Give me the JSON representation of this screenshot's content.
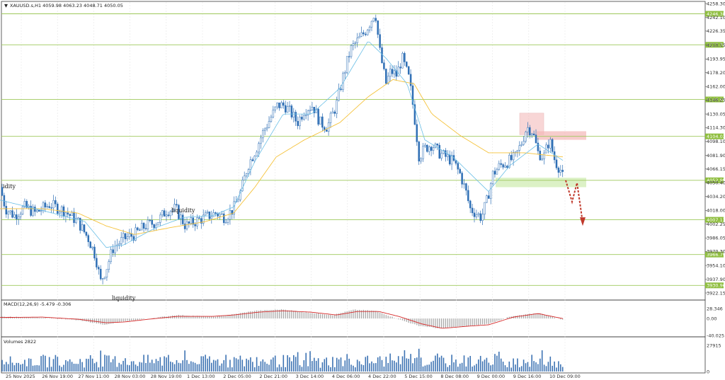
{
  "header": {
    "menu_icon": "triangle-down-icon",
    "text": "XAUUSD.s,H1  4059.98 4063.23 4048.71 4050.05"
  },
  "colors": {
    "bull": "#2f6fb5",
    "bear": "#2f6fb5",
    "ma_fast": "#6bbfe6",
    "ma_slow": "#f5c23a",
    "level": "#9ec85b",
    "level_label_bg": "#8fbe3f",
    "macd_signal": "#d62a2a",
    "macd_hist": "#a9a9a9",
    "volume": "#3d73b3",
    "zone_red": "#f4b6b6",
    "zone_green": "#d8f0c0",
    "arrow": "#c0392b",
    "frame": "#3a3a3a"
  },
  "chart_data": {
    "type": "candlestick",
    "symbol": "XAUUSD.s",
    "timeframe": "H1",
    "ohlc_last": {
      "open": 4059.98,
      "high": 4063.23,
      "low": 4048.71,
      "close": 4050.05
    },
    "ylim": [
      3922.15,
      4258.3
    ],
    "price_axis_ticks": [
      "4258.30",
      "4242.10",
      "4226.35",
      "4210.15",
      "4193.95",
      "4178.20",
      "4162.00",
      "4146.25",
      "4130.05",
      "4114.30",
      "4098.10",
      "4081.90",
      "4066.15",
      "4050.40",
      "4034.20",
      "4018.00",
      "4002.25",
      "3986.05",
      "3970.30",
      "3954.10",
      "3937.90",
      "3922.15"
    ],
    "horizontal_levels": [
      {
        "label": "4246.38",
        "value": 4246.38
      },
      {
        "label": "4210.38",
        "value": 4210.38
      },
      {
        "label": "4146.90",
        "value": 4146.9
      },
      {
        "label": "4104.03",
        "value": 4104.03
      },
      {
        "label": "4052.99",
        "value": 4052.99
      },
      {
        "label": "4007.13",
        "value": 4007.13
      },
      {
        "label": "3966.79",
        "value": 3966.79
      },
      {
        "label": "3930.96",
        "value": 3930.96
      }
    ],
    "annotations": [
      {
        "text": "idity"
      },
      {
        "text": "liquidity"
      },
      {
        "text": "liquidity"
      }
    ],
    "close_path_keypoints": [
      [
        0,
        4045
      ],
      [
        8,
        4020
      ],
      [
        20,
        4012
      ],
      [
        35,
        4022
      ],
      [
        50,
        4015
      ],
      [
        70,
        4025
      ],
      [
        90,
        4018
      ],
      [
        110,
        4005
      ],
      [
        125,
        3985
      ],
      [
        135,
        3965
      ],
      [
        142,
        3935
      ],
      [
        150,
        3950
      ],
      [
        160,
        3975
      ],
      [
        175,
        3985
      ],
      [
        190,
        3990
      ],
      [
        205,
        4000
      ],
      [
        222,
        4005
      ],
      [
        235,
        4018
      ],
      [
        248,
        4020
      ],
      [
        262,
        4000
      ],
      [
        275,
        4005
      ],
      [
        290,
        4010
      ],
      [
        305,
        4015
      ],
      [
        318,
        4010
      ],
      [
        330,
        4020
      ],
      [
        340,
        4040
      ],
      [
        350,
        4070
      ],
      [
        362,
        4090
      ],
      [
        372,
        4110
      ],
      [
        382,
        4125
      ],
      [
        392,
        4140
      ],
      [
        402,
        4140
      ],
      [
        412,
        4130
      ],
      [
        420,
        4120
      ],
      [
        430,
        4135
      ],
      [
        442,
        4140
      ],
      [
        452,
        4120
      ],
      [
        462,
        4115
      ],
      [
        475,
        4140
      ],
      [
        485,
        4175
      ],
      [
        495,
        4205
      ],
      [
        505,
        4215
      ],
      [
        515,
        4225
      ],
      [
        525,
        4240
      ],
      [
        530,
        4250
      ],
      [
        536,
        4205
      ],
      [
        545,
        4165
      ],
      [
        552,
        4180
      ],
      [
        560,
        4175
      ],
      [
        568,
        4195
      ],
      [
        578,
        4170
      ],
      [
        585,
        4130
      ],
      [
        592,
        4080
      ],
      [
        600,
        4090
      ],
      [
        610,
        4095
      ],
      [
        620,
        4085
      ],
      [
        630,
        4080
      ],
      [
        640,
        4075
      ],
      [
        650,
        4060
      ],
      [
        658,
        4040
      ],
      [
        664,
        4020
      ],
      [
        672,
        4015
      ],
      [
        680,
        4010
      ],
      [
        688,
        4030
      ],
      [
        696,
        4060
      ],
      [
        706,
        4070
      ],
      [
        718,
        4075
      ],
      [
        728,
        4080
      ],
      [
        736,
        4095
      ],
      [
        744,
        4115
      ],
      [
        752,
        4110
      ],
      [
        760,
        4085
      ],
      [
        768,
        4080
      ],
      [
        776,
        4100
      ],
      [
        784,
        4075
      ],
      [
        792,
        4065
      ],
      [
        797,
        4050
      ]
    ],
    "ma_fast_keypoints": [
      [
        0,
        4030
      ],
      [
        60,
        4018
      ],
      [
        120,
        4005
      ],
      [
        150,
        3975
      ],
      [
        175,
        3978
      ],
      [
        220,
        3998
      ],
      [
        260,
        4010
      ],
      [
        300,
        4012
      ],
      [
        330,
        4022
      ],
      [
        360,
        4075
      ],
      [
        400,
        4130
      ],
      [
        440,
        4130
      ],
      [
        480,
        4160
      ],
      [
        520,
        4215
      ],
      [
        545,
        4195
      ],
      [
        575,
        4165
      ],
      [
        600,
        4100
      ],
      [
        640,
        4080
      ],
      [
        690,
        4040
      ],
      [
        720,
        4070
      ],
      [
        760,
        4095
      ],
      [
        797,
        4075
      ]
    ],
    "ma_slow_keypoints": [
      [
        0,
        4020
      ],
      [
        60,
        4020
      ],
      [
        110,
        4015
      ],
      [
        150,
        4000
      ],
      [
        190,
        3990
      ],
      [
        240,
        3998
      ],
      [
        290,
        4005
      ],
      [
        330,
        4015
      ],
      [
        360,
        4045
      ],
      [
        390,
        4080
      ],
      [
        430,
        4100
      ],
      [
        480,
        4120
      ],
      [
        520,
        4150
      ],
      [
        555,
        4170
      ],
      [
        585,
        4165
      ],
      [
        610,
        4130
      ],
      [
        650,
        4105
      ],
      [
        690,
        4085
      ],
      [
        740,
        4085
      ],
      [
        797,
        4080
      ]
    ],
    "macd": {
      "label": "MACD(12,26,9) -5.479 -0.306",
      "axis_ticks": [
        "28.346",
        "0.00",
        "-40.025"
      ],
      "ylim": [
        -40.025,
        28.346
      ],
      "histogram_keypoints": [
        [
          0,
          5
        ],
        [
          60,
          3
        ],
        [
          110,
          -5
        ],
        [
          150,
          -18
        ],
        [
          170,
          -10
        ],
        [
          210,
          0
        ],
        [
          250,
          10
        ],
        [
          300,
          5
        ],
        [
          330,
          12
        ],
        [
          360,
          22
        ],
        [
          400,
          26
        ],
        [
          430,
          18
        ],
        [
          470,
          10
        ],
        [
          500,
          25
        ],
        [
          530,
          22
        ],
        [
          560,
          0
        ],
        [
          590,
          -20
        ],
        [
          620,
          -28
        ],
        [
          660,
          -22
        ],
        [
          690,
          -15
        ],
        [
          720,
          5
        ],
        [
          760,
          16
        ],
        [
          797,
          -5
        ]
      ],
      "signal_keypoints": [
        [
          0,
          3
        ],
        [
          60,
          4
        ],
        [
          110,
          -2
        ],
        [
          150,
          -12
        ],
        [
          175,
          -10
        ],
        [
          210,
          -2
        ],
        [
          250,
          6
        ],
        [
          300,
          6
        ],
        [
          330,
          10
        ],
        [
          365,
          18
        ],
        [
          400,
          22
        ],
        [
          440,
          18
        ],
        [
          475,
          10
        ],
        [
          505,
          20
        ],
        [
          535,
          20
        ],
        [
          565,
          5
        ],
        [
          595,
          -15
        ],
        [
          625,
          -28
        ],
        [
          660,
          -22
        ],
        [
          690,
          -18
        ],
        [
          725,
          4
        ],
        [
          760,
          14
        ],
        [
          797,
          -1
        ]
      ]
    },
    "volumes": {
      "label": "Volumes 2822",
      "axis_ticks": [
        "27915",
        "0"
      ],
      "ylim": [
        0,
        27915
      ]
    },
    "time_axis_labels": [
      "25 Nov 2025",
      "26 Nov 19:00",
      "27 Nov 11:00",
      "28 Nov 03:00",
      "28 Nov 19:00",
      "1 Dec 13:00",
      "2 Dec 05:00",
      "2 Dec 21:00",
      "3 Dec 14:00",
      "4 Dec 06:00",
      "4 Dec 22:00",
      "5 Dec 15:00",
      "8 Dec 08:00",
      "9 Dec 00:00",
      "9 Dec 16:00",
      "10 Dec 09:00"
    ]
  }
}
